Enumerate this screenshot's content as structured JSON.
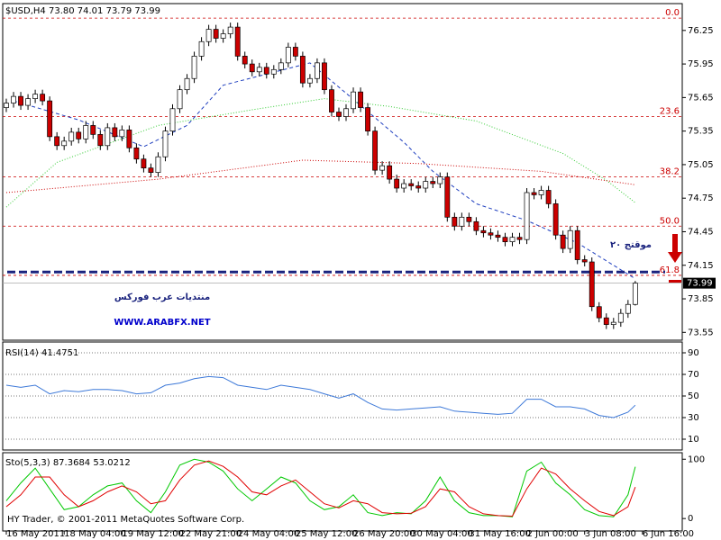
{
  "chart_data": [
    {
      "type": "candlestick",
      "title": "$USD,H4  73.80 74.01 73.79 73.99",
      "xlim": [
        -0.5,
        93.5
      ],
      "xticks": [
        {
          "value": 0,
          "label": "16 May 2011"
        },
        {
          "value": 8,
          "label": "18 May 04:00"
        },
        {
          "value": 16,
          "label": "19 May 12:00"
        },
        {
          "value": 24,
          "label": "22 May 21:00"
        },
        {
          "value": 32,
          "label": "24 May 04:00"
        },
        {
          "value": 40,
          "label": "25 May 12:00"
        },
        {
          "value": 48,
          "label": "26 May 20:00"
        },
        {
          "value": 56,
          "label": "30 May 04:00"
        },
        {
          "value": 64,
          "label": "31 May 16:00"
        },
        {
          "value": 72,
          "label": "2 Jun 00:00"
        },
        {
          "value": 80,
          "label": "3 Jun 08:00"
        },
        {
          "value": 88,
          "label": "6 Jun 16:00"
        }
      ],
      "ylim": [
        73.48,
        76.49
      ],
      "yticks": [
        76.25,
        75.95,
        75.65,
        75.35,
        75.05,
        74.75,
        74.45,
        74.15,
        73.85,
        73.55
      ],
      "up_color": "#ffffff",
      "down_color": "#cc0000",
      "open": [
        75.56,
        75.6,
        75.66,
        75.58,
        75.64,
        75.68,
        75.62,
        75.3,
        75.22,
        75.26,
        75.34,
        75.28,
        75.4,
        75.32,
        75.22,
        75.38,
        75.3,
        75.36,
        75.2,
        75.1,
        75.02,
        74.98,
        75.12,
        75.35,
        75.55,
        75.72,
        75.82,
        76.02,
        76.15,
        76.26,
        76.18,
        76.22,
        76.28,
        76.02,
        75.95,
        75.88,
        75.92,
        75.86,
        75.9,
        75.96,
        76.1,
        76.02,
        75.78,
        75.82,
        75.96,
        75.72,
        75.52,
        75.48,
        75.55,
        75.7,
        75.56,
        75.35,
        75.0,
        75.04,
        74.92,
        74.84,
        74.88,
        74.86,
        74.84,
        74.9,
        74.88,
        74.94,
        74.58,
        74.5,
        74.58,
        74.54,
        74.46,
        74.44,
        74.42,
        74.4,
        74.36,
        74.4,
        74.38,
        74.8,
        74.78,
        74.82,
        74.7,
        74.42,
        74.3,
        74.46,
        74.2,
        74.18,
        73.78,
        73.68,
        73.62,
        73.64,
        73.72,
        73.8
      ],
      "high": [
        75.64,
        75.7,
        75.7,
        75.68,
        75.72,
        75.72,
        75.66,
        75.34,
        75.3,
        75.38,
        75.38,
        75.44,
        75.44,
        75.36,
        75.42,
        75.42,
        75.4,
        75.4,
        75.24,
        75.14,
        75.06,
        75.16,
        75.39,
        75.59,
        75.76,
        75.86,
        76.06,
        76.19,
        76.3,
        76.3,
        76.26,
        76.32,
        76.32,
        76.06,
        75.99,
        75.96,
        75.96,
        75.94,
        76.0,
        76.14,
        76.14,
        76.06,
        75.86,
        76.0,
        76.0,
        75.76,
        75.56,
        75.59,
        75.74,
        75.74,
        75.6,
        75.39,
        75.08,
        75.08,
        74.96,
        74.92,
        74.92,
        74.9,
        74.94,
        74.94,
        74.98,
        74.98,
        74.62,
        74.62,
        74.62,
        74.58,
        74.5,
        74.48,
        74.46,
        74.44,
        74.44,
        74.44,
        74.84,
        74.84,
        74.86,
        74.86,
        74.74,
        74.46,
        74.5,
        74.5,
        74.24,
        74.22,
        73.82,
        73.72,
        73.68,
        73.76,
        73.84,
        74.01
      ],
      "low": [
        75.52,
        75.56,
        75.54,
        75.54,
        75.6,
        75.58,
        75.26,
        75.18,
        75.18,
        75.22,
        75.24,
        75.24,
        75.28,
        75.18,
        75.18,
        75.26,
        75.26,
        75.16,
        75.06,
        74.98,
        74.94,
        74.94,
        75.08,
        75.31,
        75.51,
        75.68,
        75.78,
        75.98,
        76.11,
        76.14,
        76.14,
        76.18,
        75.98,
        75.91,
        75.84,
        75.84,
        75.82,
        75.82,
        75.86,
        75.92,
        75.98,
        75.74,
        75.74,
        75.78,
        75.68,
        75.48,
        75.44,
        75.44,
        75.51,
        75.52,
        75.31,
        74.96,
        74.96,
        74.88,
        74.8,
        74.8,
        74.82,
        74.8,
        74.8,
        74.84,
        74.84,
        74.54,
        74.46,
        74.46,
        74.5,
        74.42,
        74.4,
        74.38,
        74.36,
        74.32,
        74.32,
        74.34,
        74.34,
        74.74,
        74.74,
        74.66,
        74.38,
        74.26,
        74.26,
        74.16,
        74.14,
        73.74,
        73.64,
        73.58,
        73.58,
        73.6,
        73.68,
        73.79
      ],
      "close": [
        75.6,
        75.66,
        75.58,
        75.64,
        75.68,
        75.62,
        75.3,
        75.22,
        75.26,
        75.34,
        75.28,
        75.4,
        75.32,
        75.22,
        75.38,
        75.3,
        75.36,
        75.2,
        75.1,
        75.02,
        74.98,
        75.12,
        75.35,
        75.55,
        75.72,
        75.82,
        76.02,
        76.15,
        76.26,
        76.18,
        76.22,
        76.28,
        76.02,
        75.95,
        75.88,
        75.92,
        75.86,
        75.9,
        75.96,
        76.1,
        76.02,
        75.78,
        75.82,
        75.96,
        75.72,
        75.52,
        75.48,
        75.55,
        75.7,
        75.56,
        75.35,
        75.0,
        75.04,
        74.92,
        74.84,
        74.88,
        74.86,
        74.84,
        74.9,
        74.88,
        74.94,
        74.58,
        74.5,
        74.58,
        74.54,
        74.46,
        74.44,
        74.42,
        74.4,
        74.36,
        74.4,
        74.38,
        74.8,
        74.78,
        74.82,
        74.7,
        74.42,
        74.3,
        74.46,
        74.2,
        74.18,
        73.78,
        73.68,
        73.62,
        73.64,
        73.72,
        73.8,
        73.99
      ],
      "overlays": [
        {
          "color": "#1f3fbf",
          "style": "dashed",
          "x": [
            1,
            10,
            19,
            25,
            30,
            42,
            49,
            55,
            59,
            65,
            72,
            79,
            87
          ],
          "values": [
            75.62,
            75.45,
            75.21,
            75.4,
            75.76,
            75.96,
            75.58,
            75.25,
            74.99,
            74.7,
            74.55,
            74.35,
            74.03
          ]
        },
        {
          "color": "#33cc33",
          "style": "dotted",
          "x": [
            0,
            7,
            21,
            34,
            44,
            53,
            65,
            77,
            83,
            87
          ],
          "values": [
            74.67,
            75.07,
            75.4,
            75.54,
            75.64,
            75.57,
            75.44,
            75.15,
            74.91,
            74.71
          ]
        },
        {
          "color": "#cc0000",
          "style": "dotted",
          "x": [
            0,
            21,
            41,
            57,
            74,
            87
          ],
          "values": [
            74.8,
            74.92,
            75.09,
            75.06,
            74.99,
            74.87
          ]
        }
      ],
      "levels": [
        {
          "label": "0.0",
          "value": 76.36
        },
        {
          "label": "23.6",
          "value": 75.48
        },
        {
          "label": "38.2",
          "value": 74.94
        },
        {
          "label": "50.0",
          "value": 74.5
        },
        {
          "label": "61.8",
          "value": 74.06
        }
      ],
      "level_color": "#cc0000",
      "support_line": {
        "value": 74.09,
        "color": "#1a237e"
      },
      "last_price": 73.99,
      "annotations": [
        "موقتج ٢٠",
        "منتديات عرب فوركس",
        "WWW.ARABFX.NET"
      ]
    },
    {
      "type": "line",
      "title": "RSI(14) 41.4751",
      "xlim": [
        -0.5,
        93.5
      ],
      "ylim": [
        0,
        100
      ],
      "yticks": [
        90,
        70,
        50,
        30,
        10
      ],
      "grid": true,
      "color": "#3c78d8",
      "x": [
        0,
        2,
        4,
        6,
        8,
        10,
        12,
        14,
        16,
        18,
        20,
        22,
        24,
        26,
        28,
        30,
        32,
        34,
        36,
        38,
        40,
        42,
        44,
        46,
        48,
        50,
        52,
        54,
        56,
        58,
        60,
        62,
        64,
        66,
        68,
        70,
        72,
        74,
        76,
        78,
        80,
        82,
        84,
        86,
        87
      ],
      "values": [
        60,
        58,
        60,
        52,
        55,
        54,
        56,
        56,
        55,
        52,
        53,
        60,
        62,
        66,
        68,
        67,
        60,
        58,
        56,
        60,
        58,
        56,
        52,
        48,
        52,
        44,
        38,
        37,
        38,
        39,
        40,
        36,
        35,
        34,
        33,
        34,
        47,
        47,
        40,
        40,
        38,
        32,
        30,
        35,
        41.4751
      ]
    },
    {
      "type": "line",
      "title": "Sto(5,3,3) 87.3684 53.0212",
      "footer": "HY Trader, © 2001-2011 MetaQuotes Software Corp.",
      "xlim": [
        -0.5,
        93.5
      ],
      "ylim": [
        -21,
        111
      ],
      "yticks": [
        100,
        0
      ],
      "grid": false,
      "x": [
        0,
        2,
        4,
        6,
        8,
        10,
        12,
        14,
        16,
        18,
        20,
        22,
        24,
        26,
        28,
        30,
        32,
        34,
        36,
        38,
        40,
        42,
        44,
        46,
        48,
        50,
        52,
        54,
        56,
        58,
        60,
        62,
        64,
        66,
        68,
        70,
        72,
        74,
        76,
        78,
        80,
        82,
        84,
        86,
        87
      ],
      "series": [
        {
          "color": "#00c800",
          "values": [
            30,
            60,
            85,
            50,
            15,
            20,
            40,
            55,
            60,
            30,
            10,
            45,
            90,
            100,
            95,
            80,
            50,
            30,
            50,
            70,
            60,
            30,
            15,
            20,
            40,
            10,
            5,
            10,
            8,
            30,
            70,
            30,
            10,
            5,
            5,
            3,
            80,
            95,
            60,
            40,
            15,
            5,
            3,
            40,
            87.3684
          ]
        },
        {
          "color": "#e00000",
          "values": [
            20,
            40,
            70,
            70,
            40,
            20,
            30,
            45,
            55,
            45,
            25,
            30,
            65,
            90,
            97,
            88,
            70,
            45,
            40,
            55,
            65,
            45,
            25,
            18,
            30,
            25,
            10,
            8,
            9,
            20,
            50,
            45,
            20,
            8,
            5,
            4,
            50,
            85,
            75,
            50,
            30,
            12,
            5,
            20,
            53.0212
          ]
        }
      ]
    }
  ]
}
